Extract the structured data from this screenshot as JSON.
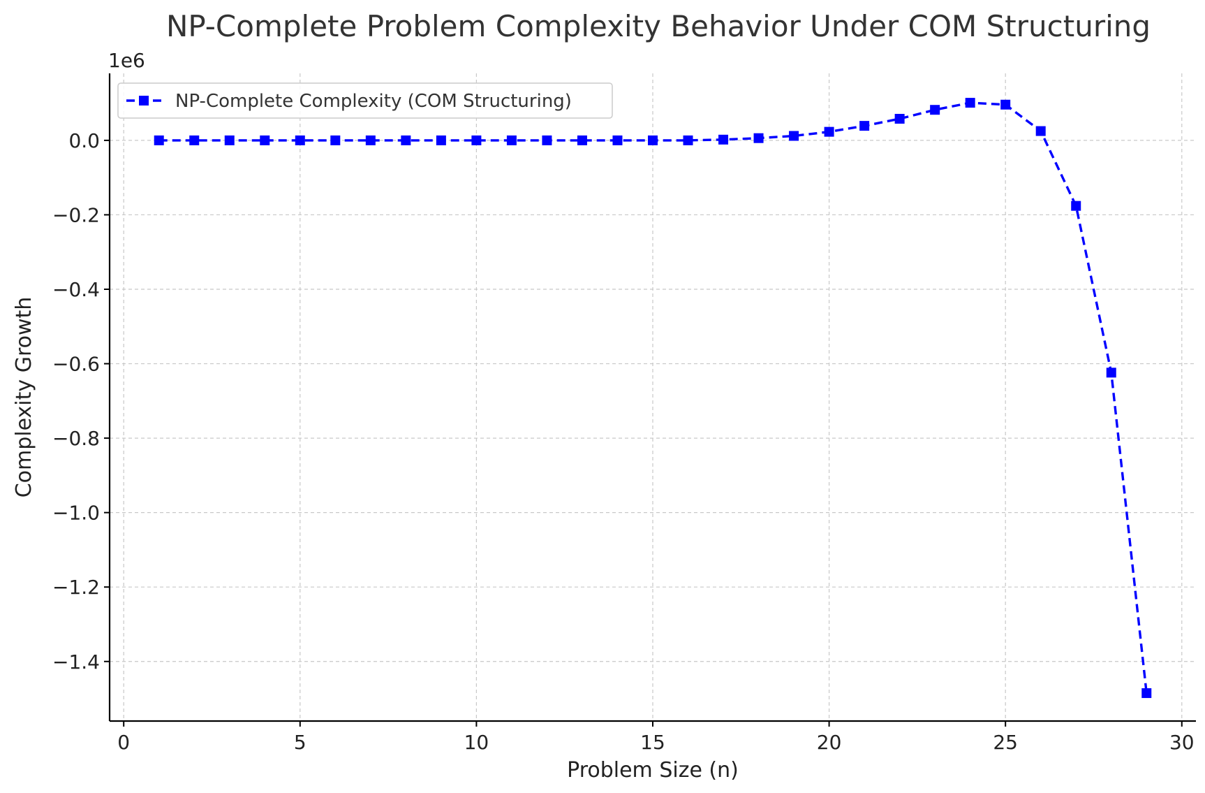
{
  "chart_data": {
    "type": "line",
    "title": "NP-Complete Problem Complexity Behavior Under COM Structuring",
    "xlabel": "Problem Size (n)",
    "ylabel": "Complexity Growth",
    "y_offset_label": "1e6",
    "xlim": [
      -0.4,
      30.4
    ],
    "ylim": [
      -1.56,
      0.18
    ],
    "x_ticks": [
      0,
      5,
      10,
      15,
      20,
      25,
      30
    ],
    "x_tick_labels": [
      "0",
      "5",
      "10",
      "15",
      "20",
      "25",
      "30"
    ],
    "y_ticks": [
      0.0,
      -0.2,
      -0.4,
      -0.6,
      -0.8,
      -1.0,
      -1.2,
      -1.4
    ],
    "y_tick_labels": [
      "0.0",
      "−0.2",
      "−0.4",
      "−0.6",
      "−0.8",
      "−1.0",
      "−1.2",
      "−1.4"
    ],
    "grid": true,
    "legend_position": "top-left",
    "series": [
      {
        "name": "NP-Complete Complexity (COM Structuring)",
        "color": "#0000ff",
        "line_style": "dashed",
        "marker": "square",
        "x": [
          1,
          2,
          3,
          4,
          5,
          6,
          7,
          8,
          9,
          10,
          11,
          12,
          13,
          14,
          15,
          16,
          17,
          18,
          19,
          20,
          21,
          22,
          23,
          24,
          25,
          26,
          27,
          28,
          29
        ],
        "y": [
          0.0,
          0.0,
          0.0,
          0.0,
          0.0,
          0.0,
          0.0,
          0.0,
          0.0,
          0.0,
          0.0,
          0.0,
          0.0,
          0.0,
          0.0,
          0.0,
          0.002,
          0.006,
          0.012,
          0.023,
          0.039,
          0.058,
          0.082,
          0.101,
          0.096,
          0.025,
          -0.176,
          -0.624,
          -1.485
        ]
      }
    ]
  }
}
